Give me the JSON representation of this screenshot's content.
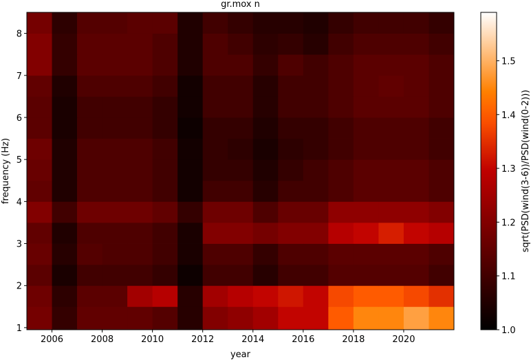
{
  "chart_data": {
    "type": "heatmap",
    "title": "gr.mox n",
    "x_label": "year",
    "y_label": "frequency (Hz)",
    "colorbar_label": "sqrt(PSD(wind(3-6))/PSD(wind(0-2)))",
    "colormap": "gist_heat",
    "x_edges": [
      2005,
      2006,
      2007,
      2008,
      2009,
      2010,
      2011,
      2012,
      2013,
      2014,
      2015,
      2016,
      2017,
      2018,
      2019,
      2020,
      2021,
      2022
    ],
    "y_edges": [
      0.95,
      1.5,
      2,
      2.5,
      3,
      3.5,
      4,
      4.5,
      5,
      5.5,
      6,
      6.5,
      7,
      7.5,
      8,
      8.5
    ],
    "values": [
      [
        1.18,
        1.08,
        1.15,
        1.15,
        1.15,
        1.13,
        1.06,
        1.2,
        1.22,
        1.25,
        1.3,
        1.3,
        1.4,
        1.45,
        1.45,
        1.48,
        1.45
      ],
      [
        1.17,
        1.07,
        1.14,
        1.14,
        1.25,
        1.28,
        1.06,
        1.25,
        1.28,
        1.3,
        1.32,
        1.3,
        1.38,
        1.4,
        1.4,
        1.38,
        1.35
      ],
      [
        1.14,
        1.04,
        1.1,
        1.1,
        1.1,
        1.08,
        1.02,
        1.1,
        1.1,
        1.06,
        1.1,
        1.1,
        1.13,
        1.13,
        1.13,
        1.13,
        1.1
      ],
      [
        1.16,
        1.06,
        1.13,
        1.12,
        1.12,
        1.1,
        1.04,
        1.12,
        1.12,
        1.08,
        1.12,
        1.12,
        1.14,
        1.14,
        1.14,
        1.14,
        1.12
      ],
      [
        1.15,
        1.05,
        1.12,
        1.12,
        1.12,
        1.1,
        1.04,
        1.2,
        1.2,
        1.18,
        1.2,
        1.2,
        1.28,
        1.3,
        1.33,
        1.3,
        1.28
      ],
      [
        1.2,
        1.1,
        1.17,
        1.17,
        1.17,
        1.15,
        1.08,
        1.17,
        1.17,
        1.12,
        1.16,
        1.16,
        1.22,
        1.22,
        1.22,
        1.22,
        1.2
      ],
      [
        1.15,
        1.05,
        1.12,
        1.12,
        1.12,
        1.1,
        1.03,
        1.1,
        1.1,
        1.06,
        1.1,
        1.1,
        1.12,
        1.14,
        1.14,
        1.14,
        1.12
      ],
      [
        1.16,
        1.05,
        1.12,
        1.12,
        1.12,
        1.1,
        1.03,
        1.08,
        1.08,
        1.05,
        1.08,
        1.1,
        1.12,
        1.14,
        1.14,
        1.14,
        1.12
      ],
      [
        1.17,
        1.05,
        1.12,
        1.12,
        1.12,
        1.1,
        1.03,
        1.08,
        1.07,
        1.04,
        1.07,
        1.08,
        1.1,
        1.12,
        1.12,
        1.12,
        1.1
      ],
      [
        1.14,
        1.04,
        1.1,
        1.1,
        1.1,
        1.08,
        1.02,
        1.08,
        1.08,
        1.05,
        1.08,
        1.08,
        1.1,
        1.12,
        1.12,
        1.12,
        1.1
      ],
      [
        1.14,
        1.04,
        1.1,
        1.1,
        1.1,
        1.08,
        1.03,
        1.1,
        1.1,
        1.06,
        1.1,
        1.1,
        1.12,
        1.14,
        1.14,
        1.14,
        1.12
      ],
      [
        1.15,
        1.05,
        1.12,
        1.12,
        1.12,
        1.1,
        1.03,
        1.1,
        1.1,
        1.06,
        1.1,
        1.1,
        1.12,
        1.14,
        1.15,
        1.14,
        1.12
      ],
      [
        1.2,
        1.08,
        1.14,
        1.14,
        1.14,
        1.12,
        1.05,
        1.12,
        1.12,
        1.08,
        1.12,
        1.1,
        1.12,
        1.14,
        1.14,
        1.14,
        1.12
      ],
      [
        1.2,
        1.08,
        1.14,
        1.14,
        1.14,
        1.12,
        1.05,
        1.12,
        1.1,
        1.07,
        1.08,
        1.06,
        1.1,
        1.12,
        1.12,
        1.12,
        1.1
      ],
      [
        1.18,
        1.07,
        1.13,
        1.13,
        1.14,
        1.14,
        1.05,
        1.1,
        1.08,
        1.06,
        1.06,
        1.05,
        1.08,
        1.1,
        1.1,
        1.1,
        1.08
      ]
    ],
    "xlim": [
      2005,
      2022
    ],
    "ylim": [
      0.95,
      8.5
    ],
    "clim": [
      1.0,
      1.59
    ],
    "xticks": [
      2006,
      2008,
      2010,
      2012,
      2014,
      2016,
      2018,
      2020
    ],
    "yticks": [
      1,
      2,
      3,
      4,
      5,
      6,
      7,
      8
    ],
    "cticks": [
      {
        "value": 1.0,
        "label": "1.0"
      },
      1.1,
      1.2,
      1.3,
      1.4,
      1.5
    ]
  }
}
